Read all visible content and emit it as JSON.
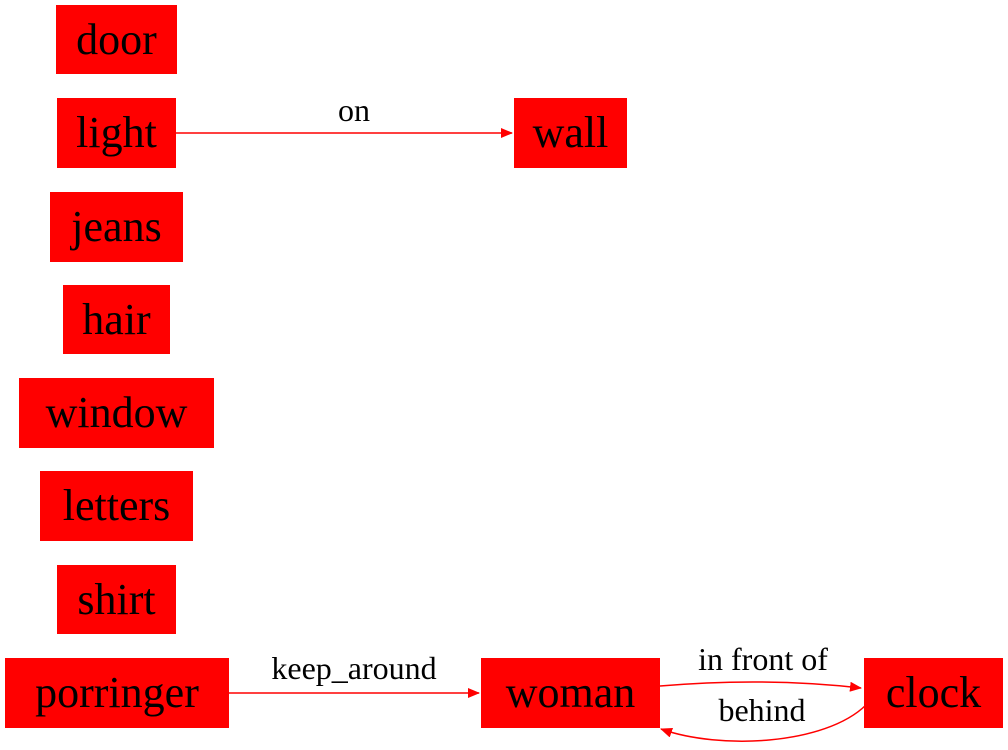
{
  "diagram": {
    "node_color": "#ff0000",
    "edge_color": "#ff0000",
    "text_color": "#000000",
    "nodes": {
      "door": "door",
      "light": "light",
      "jeans": "jeans",
      "hair": "hair",
      "window": "window",
      "letters": "letters",
      "shirt": "shirt",
      "porringer": "porringer",
      "wall": "wall",
      "woman": "woman",
      "clock": "clock"
    },
    "edges": [
      {
        "from": "light",
        "to": "wall",
        "label": "on"
      },
      {
        "from": "porringer",
        "to": "woman",
        "label": "keep_around"
      },
      {
        "from": "woman",
        "to": "clock",
        "label": "in front of"
      },
      {
        "from": "clock",
        "to": "woman",
        "label": "behind"
      }
    ]
  }
}
